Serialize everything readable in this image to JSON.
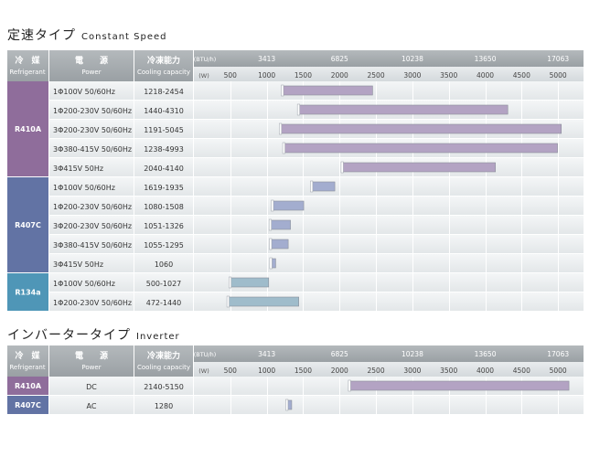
{
  "constant": {
    "title_jp": "定速タイプ",
    "title_en": "Constant Speed"
  },
  "inverter": {
    "title_jp": "インバータータイプ",
    "title_en": "Inverter"
  },
  "headers": {
    "refrigerant_jp": "冷　媒",
    "refrigerant_en": "Refrigerant",
    "power_jp": "電　　源",
    "power_en": "Power",
    "capacity_jp": "冷凍能力",
    "capacity_en": "Cooling capacity",
    "unit_btu": "(BTU/h)",
    "unit_w": "(W)"
  },
  "colors": {
    "r410a": "#8f6d9b",
    "r407c": "#6273a4",
    "r134a": "#4f96b7",
    "bar_r410a": "#b3a3c3",
    "bar_r407c": "#a3adcf",
    "bar_r134a": "#9fbccb"
  },
  "chart_data": [
    {
      "type": "bar",
      "title": "定速タイプ Constant Speed",
      "orientation": "horizontal-range",
      "x_axis_w": {
        "ticks": [
          500,
          1000,
          1500,
          2000,
          2500,
          3000,
          3500,
          4000,
          4500,
          5000
        ],
        "unit": "(W)"
      },
      "x_axis_btu": {
        "ticks": [
          "3413",
          "6825",
          "10238",
          "13650",
          "17063"
        ],
        "unit": "(BTU/h)"
      },
      "xlim": [
        0,
        5350
      ],
      "groups": [
        {
          "refrigerant": "R410A",
          "color": "r410a",
          "rows": [
            {
              "power": "1Φ100V 50/60Hz",
              "range_label": "1218-2454",
              "min": 1218,
              "max": 2454
            },
            {
              "power": "1Φ200-230V 50/60Hz",
              "range_label": "1440-4310",
              "min": 1440,
              "max": 4310
            },
            {
              "power": "3Φ200-230V 50/60Hz",
              "range_label": "1191-5045",
              "min": 1191,
              "max": 5045
            },
            {
              "power": "3Φ380-415V 50/60Hz",
              "range_label": "1238-4993",
              "min": 1238,
              "max": 4993
            },
            {
              "power": "3Φ415V 50Hz",
              "range_label": "2040-4140",
              "min": 2040,
              "max": 4140
            }
          ]
        },
        {
          "refrigerant": "R407C",
          "color": "r407c",
          "rows": [
            {
              "power": "1Φ100V 50/60Hz",
              "range_label": "1619-1935",
              "min": 1619,
              "max": 1935
            },
            {
              "power": "1Φ200-230V 50/60Hz",
              "range_label": "1080-1508",
              "min": 1080,
              "max": 1508
            },
            {
              "power": "3Φ200-230V 50/60Hz",
              "range_label": "1051-1326",
              "min": 1051,
              "max": 1326
            },
            {
              "power": "3Φ380-415V 50/60Hz",
              "range_label": "1055-1295",
              "min": 1055,
              "max": 1295
            },
            {
              "power": "3Φ415V 50Hz",
              "range_label": "1060",
              "min": 1060,
              "max": 1060
            }
          ]
        },
        {
          "refrigerant": "R134a",
          "color": "r134a",
          "rows": [
            {
              "power": "1Φ100V 50/60Hz",
              "range_label": "500-1027",
              "min": 500,
              "max": 1027
            },
            {
              "power": "1Φ200-230V 50/60Hz",
              "range_label": "472-1440",
              "min": 472,
              "max": 1440
            }
          ]
        }
      ]
    },
    {
      "type": "bar",
      "title": "インバータータイプ Inverter",
      "orientation": "horizontal-range",
      "x_axis_w": {
        "ticks": [
          500,
          1000,
          1500,
          2000,
          2500,
          3000,
          3500,
          4000,
          4500,
          5000
        ],
        "unit": "(W)"
      },
      "x_axis_btu": {
        "ticks": [
          "3413",
          "6825",
          "10238",
          "13650",
          "17063"
        ],
        "unit": "(BTU/h)"
      },
      "xlim": [
        0,
        5350
      ],
      "groups": [
        {
          "refrigerant": "R410A",
          "color": "r410a",
          "rows": [
            {
              "power": "DC",
              "range_label": "2140-5150",
              "min": 2140,
              "max": 5150
            }
          ]
        },
        {
          "refrigerant": "R407C",
          "color": "r407c",
          "rows": [
            {
              "power": "AC",
              "range_label": "1280",
              "min": 1280,
              "max": 1280
            }
          ]
        }
      ]
    }
  ]
}
